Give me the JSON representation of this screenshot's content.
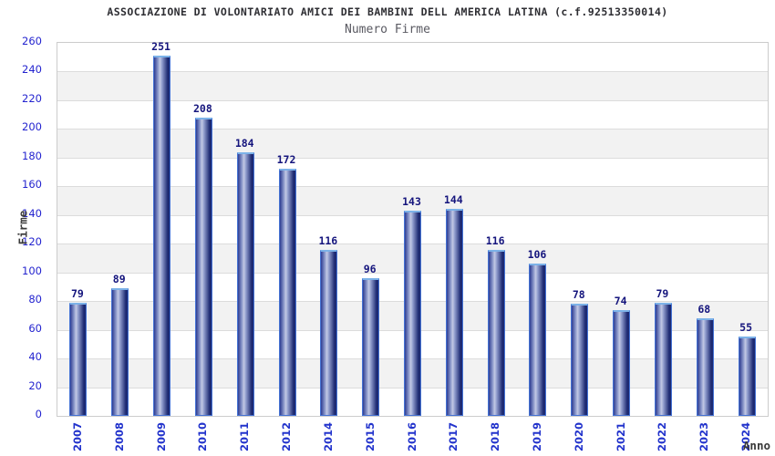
{
  "chart_data": {
    "type": "bar",
    "title": "ASSOCIAZIONE DI VOLONTARIATO AMICI DEI BAMBINI DELL AMERICA LATINA (c.f.92513350014)",
    "subtitle": "Numero Firme",
    "xlabel": "Anno",
    "ylabel": "Firme",
    "categories": [
      "2007",
      "2008",
      "2009",
      "2010",
      "2011",
      "2012",
      "2014",
      "2015",
      "2016",
      "2017",
      "2018",
      "2019",
      "2020",
      "2021",
      "2022",
      "2023",
      "2024"
    ],
    "values": [
      79,
      89,
      251,
      208,
      184,
      172,
      116,
      96,
      143,
      144,
      116,
      106,
      78,
      74,
      79,
      68,
      55
    ],
    "ylim": [
      0,
      260
    ],
    "ytick_step": 20,
    "bar_value_labels": true,
    "legend": "none",
    "grid": "horizontal gridlines with alternating white/gray bands"
  },
  "colors": {
    "title_text": "#2e2e33",
    "subtitle_text": "#5a5a62",
    "axis_title_text": "#3a3a3a",
    "ytick_text": "#2424cf",
    "category_text": "#2233cc",
    "bar_value_text": "#15157d",
    "bar_border": "#4472d4",
    "bar_top_highlight": "#7cb2e8",
    "bar_dark": "#1d2a72",
    "bar_dark2": "#2e3d93",
    "bar_mid": "#8f9bcc",
    "bar_light": "#c3c9e5",
    "band_gray": "#f2f2f2",
    "band_white": "#ffffff",
    "gridline": "#dcdcdc",
    "plot_border": "#cccccc"
  }
}
